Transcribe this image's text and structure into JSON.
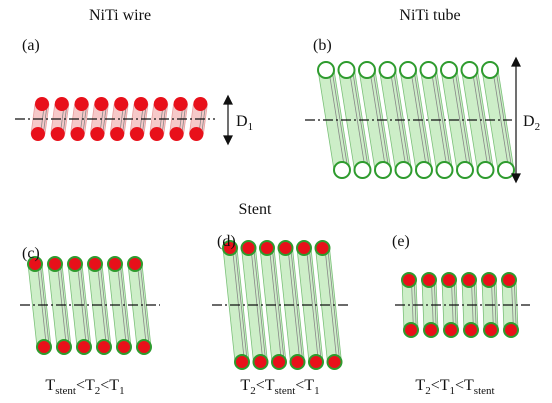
{
  "header": {
    "wire": "NiTi wire",
    "tube": "NiTi tube",
    "stent": "Stent"
  },
  "panels": {
    "a": {
      "label": "(a)",
      "dimension": {
        "main": "D",
        "sub": "1"
      }
    },
    "b": {
      "label": "(b)",
      "dimension": {
        "main": "D",
        "sub": "2"
      }
    },
    "c": {
      "label": "(c)",
      "caption": [
        {
          "main": "T",
          "sub": "stent"
        },
        {
          "main": "<T",
          "sub": "2"
        },
        {
          "main": "<T",
          "sub": "1"
        }
      ]
    },
    "d": {
      "label": "(d)",
      "caption": [
        {
          "main": "T",
          "sub": "2"
        },
        {
          "main": "<T",
          "sub": "stent"
        },
        {
          "main": "<T",
          "sub": "1"
        }
      ]
    },
    "e": {
      "label": "(e)",
      "caption": [
        {
          "main": "T",
          "sub": "2"
        },
        {
          "main": "<T",
          "sub": "1"
        },
        {
          "main": "<T",
          "sub": "stent"
        }
      ]
    }
  }
}
